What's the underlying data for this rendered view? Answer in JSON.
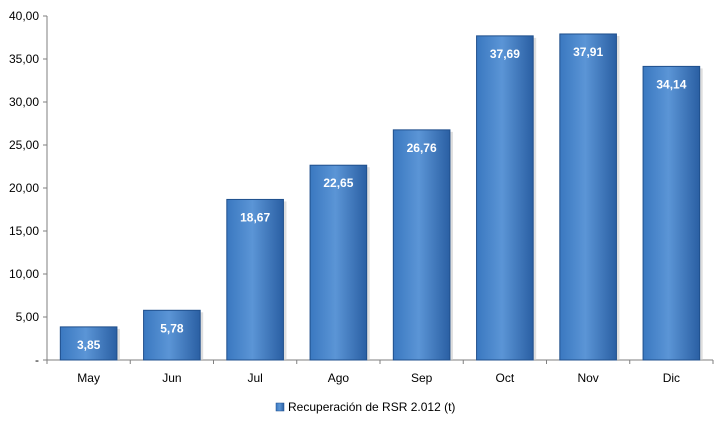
{
  "chart_data": {
    "type": "bar",
    "title": "",
    "xlabel": "",
    "ylabel": "",
    "categories": [
      "May",
      "Jun",
      "Jul",
      "Ago",
      "Sep",
      "Oct",
      "Nov",
      "Dic"
    ],
    "series": [
      {
        "name": "Recuperación de RSR 2.012 (t)",
        "values": [
          3.85,
          5.78,
          18.67,
          22.65,
          26.76,
          37.69,
          37.91,
          34.14
        ],
        "value_labels": [
          "3,85",
          "5,78",
          "18,67",
          "22,65",
          "26,76",
          "37,69",
          "37,91",
          "34,14"
        ],
        "color": "#2f6db5"
      }
    ],
    "ylim": [
      0,
      40
    ],
    "yticks": [
      0,
      5,
      10,
      15,
      20,
      25,
      30,
      35,
      40
    ],
    "ytick_labels": [
      "-",
      "5,00",
      "10,00",
      "15,00",
      "20,00",
      "25,00",
      "30,00",
      "35,00",
      "40,00"
    ],
    "grid": false,
    "legend_position": "bottom"
  },
  "colors": {
    "bar_light": "#5b9bd5",
    "bar_main": "#2f6db5",
    "bar_dark": "#1f4f8c",
    "axis": "#7f7f7f"
  }
}
